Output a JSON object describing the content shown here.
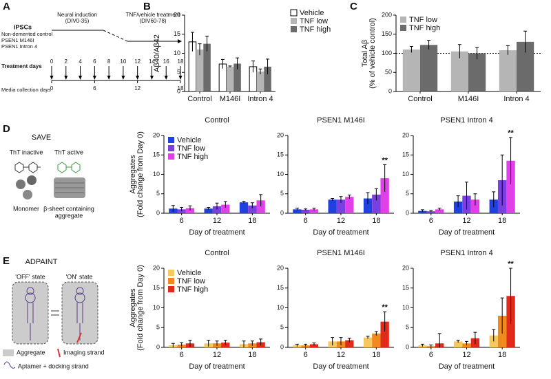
{
  "panel_labels": [
    "A",
    "B",
    "C",
    "D",
    "E"
  ],
  "timeline": {
    "cells_title": "iPSCs",
    "cell_lines": [
      "Non-demented control",
      "PSEN1 M146I",
      "PSEN1 Intron 4"
    ],
    "induction": [
      "Neural induction",
      "(DIV0-35)"
    ],
    "treatment": [
      "TNF/vehicle treatment",
      "(DIV60-78)"
    ],
    "treatment_label": "Treatment days",
    "treatment_days": [
      0,
      2,
      4,
      6,
      8,
      10,
      12,
      14,
      16,
      18
    ],
    "media_label": "Media collection days",
    "media_days": [
      0,
      6,
      12,
      18
    ]
  },
  "save": {
    "title": "SAVE",
    "inactive": "ThT inactive",
    "active": "ThT active",
    "monomer": "Monomer",
    "aggregate": [
      "β-sheet containing",
      "aggregate"
    ]
  },
  "adpaint": {
    "title": "ADPAINT",
    "off": "'OFF' state",
    "on": "'ON' state",
    "aggregate": "Aggregate",
    "imaging": "Imaging strand",
    "aptamer": "Aptamer + docking strand"
  },
  "chart_data": [
    {
      "type": "bar",
      "ylabel": [
        "Aβ40/Aβ42"
      ],
      "categories": [
        "Control",
        "M146I",
        "Intron 4"
      ],
      "ylim": [
        0,
        20
      ],
      "yticks": [
        0,
        5,
        10,
        15,
        20
      ],
      "legend": "right",
      "series": [
        {
          "name": "Vehicle",
          "color": "#ffffff",
          "values": [
            13,
            7.2,
            6.5
          ],
          "errors": [
            2.5,
            1.2,
            1.5
          ]
        },
        {
          "name": "TNF low",
          "color": "#b5b5b5",
          "values": [
            11,
            6.5,
            5.2
          ],
          "errors": [
            1.5,
            0.2,
            0.7
          ]
        },
        {
          "name": "TNF high",
          "color": "#6b6b6b",
          "values": [
            12.5,
            7.3,
            6.5
          ],
          "errors": [
            2,
            1.5,
            2
          ]
        }
      ]
    },
    {
      "type": "bar",
      "ylabel": [
        "Total Aβ",
        "(% of vehicle control)"
      ],
      "categories": [
        "Control",
        "M146I",
        "Intron 4"
      ],
      "ylim": [
        0,
        200
      ],
      "yticks": [
        0,
        50,
        100,
        150,
        200
      ],
      "legend": "upper left",
      "refline": 100,
      "series": [
        {
          "name": "TNF low",
          "color": "#b5b5b5",
          "values": [
            110,
            105,
            108
          ],
          "errors": [
            8,
            18,
            12
          ]
        },
        {
          "name": "TNF high",
          "color": "#6b6b6b",
          "values": [
            122,
            100,
            130
          ],
          "errors": [
            12,
            15,
            28
          ]
        }
      ]
    },
    {
      "type": "bar",
      "title": "Control",
      "xlabel": "Day of treatment",
      "ylabel": [
        "Aggregates",
        "(Fold change from Day 0)"
      ],
      "categories": [
        "6",
        "12",
        "18"
      ],
      "ylim": [
        0,
        20
      ],
      "yticks": [
        0,
        5,
        10,
        15,
        20
      ],
      "legend": "upper left",
      "series": [
        {
          "name": "Vehicle",
          "color": "#2040e0",
          "values": [
            1.2,
            1.2,
            2.8
          ],
          "errors": [
            0.8,
            0.3,
            0.3
          ]
        },
        {
          "name": "TNF low",
          "color": "#7a3fe0",
          "values": [
            1.0,
            1.8,
            2.0
          ],
          "errors": [
            0.5,
            0.8,
            0.7
          ]
        },
        {
          "name": "TNF high",
          "color": "#e040e8",
          "values": [
            1.3,
            2.2,
            3.3
          ],
          "errors": [
            0.6,
            0.8,
            1.5
          ]
        }
      ]
    },
    {
      "type": "bar",
      "title": "PSEN1 M146I",
      "xlabel": "Day of treatment",
      "categories": [
        "6",
        "12",
        "18"
      ],
      "ylim": [
        0,
        20
      ],
      "yticks": [
        0,
        5,
        10,
        15,
        20
      ],
      "annotation": "**",
      "series": [
        {
          "color": "#2040e0",
          "values": [
            1.0,
            3.5,
            3.8
          ],
          "errors": [
            0.3,
            0.3,
            1.5
          ]
        },
        {
          "color": "#7a3fe0",
          "values": [
            0.9,
            3.5,
            4.8
          ],
          "errors": [
            0.2,
            0.8,
            1.5
          ]
        },
        {
          "color": "#e040e8",
          "values": [
            1.0,
            4.2,
            9.0
          ],
          "errors": [
            0.3,
            0.5,
            3.5
          ]
        }
      ]
    },
    {
      "type": "bar",
      "title": "PSEN1 Intron 4",
      "xlabel": "Day of treatment",
      "categories": [
        "6",
        "12",
        "18"
      ],
      "ylim": [
        0,
        20
      ],
      "yticks": [
        0,
        5,
        10,
        15,
        20
      ],
      "annotation": "**",
      "series": [
        {
          "color": "#2040e0",
          "values": [
            0.6,
            3.0,
            3.5
          ],
          "errors": [
            0.3,
            1.5,
            2.0
          ]
        },
        {
          "color": "#7a3fe0",
          "values": [
            0.5,
            4.5,
            8.5
          ],
          "errors": [
            0.2,
            3.5,
            6.5
          ]
        },
        {
          "color": "#e040e8",
          "values": [
            1.0,
            3.5,
            13.5
          ],
          "errors": [
            0.3,
            1.5,
            6.0
          ]
        }
      ]
    },
    {
      "type": "bar",
      "title": "Control",
      "xlabel": "Day of treatment",
      "ylabel": [
        "Aggregates",
        "(Fold change from Day 0)"
      ],
      "categories": [
        "6",
        "12",
        "18"
      ],
      "ylim": [
        0,
        20
      ],
      "yticks": [
        0,
        5,
        10,
        15,
        20
      ],
      "legend": "upper left",
      "series": [
        {
          "name": "Vehicle",
          "color": "#f5c860",
          "values": [
            0.5,
            1.0,
            0.8
          ],
          "errors": [
            0.5,
            0.8,
            0.8
          ]
        },
        {
          "name": "TNF low",
          "color": "#f08a20",
          "values": [
            0.7,
            1.0,
            1.0
          ],
          "errors": [
            0.5,
            0.6,
            0.6
          ]
        },
        {
          "name": "TNF high",
          "color": "#e02a1a",
          "values": [
            1.0,
            1.2,
            1.3
          ],
          "errors": [
            0.8,
            0.6,
            0.8
          ]
        }
      ]
    },
    {
      "type": "bar",
      "title": "PSEN1 M146I",
      "xlabel": "Day of treatment",
      "categories": [
        "6",
        "12",
        "18"
      ],
      "ylim": [
        0,
        20
      ],
      "yticks": [
        0,
        5,
        10,
        15,
        20
      ],
      "annotation": "**",
      "series": [
        {
          "color": "#f5c860",
          "values": [
            0.5,
            1.5,
            2.5
          ],
          "errors": [
            0.3,
            1.0,
            0.3
          ]
        },
        {
          "color": "#f08a20",
          "values": [
            0.5,
            1.5,
            3.5
          ],
          "errors": [
            0.3,
            1.0,
            0.5
          ]
        },
        {
          "color": "#e02a1a",
          "values": [
            0.8,
            1.8,
            6.5
          ],
          "errors": [
            0.3,
            0.5,
            2.5
          ]
        }
      ]
    },
    {
      "type": "bar",
      "title": "PSEN1 Intron 4",
      "xlabel": "Day of treatment",
      "categories": [
        "6",
        "12",
        "18"
      ],
      "ylim": [
        0,
        20
      ],
      "yticks": [
        0,
        5,
        10,
        15,
        20
      ],
      "annotation": "**",
      "series": [
        {
          "color": "#f5c860",
          "values": [
            0.5,
            1.5,
            3.0
          ],
          "errors": [
            0.3,
            0.3,
            1.5
          ]
        },
        {
          "color": "#f08a20",
          "values": [
            0.3,
            1.0,
            8.0
          ],
          "errors": [
            0.3,
            0.5,
            4.5
          ]
        },
        {
          "color": "#e02a1a",
          "values": [
            1.0,
            2.3,
            13.0
          ],
          "errors": [
            2.5,
            1.5,
            7.0
          ]
        }
      ]
    }
  ]
}
